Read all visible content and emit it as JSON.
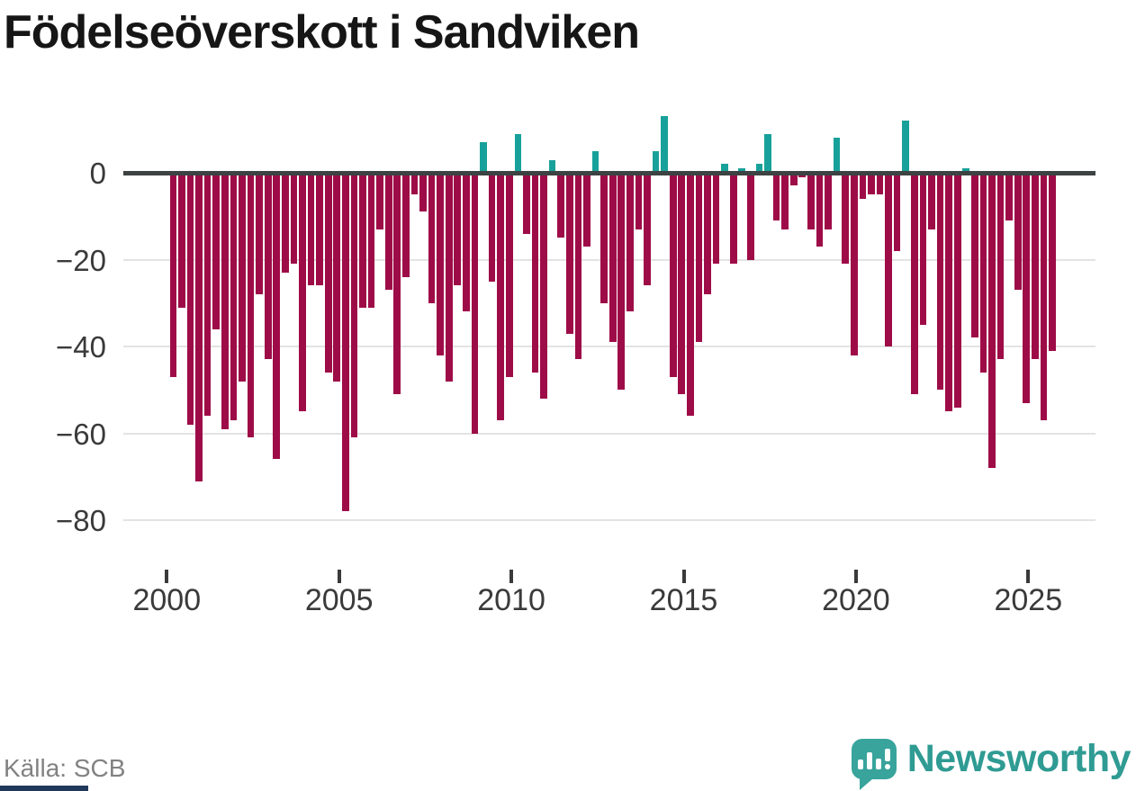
{
  "title": "Födelseöverskott i Sandviken",
  "source_label": "Källa: SCB",
  "logo": {
    "brand": "Newsworthy",
    "icon": "newsworthy-speech-bubble-chart-icon"
  },
  "colors": {
    "positive": "#18a19a",
    "negative": "#9e0c48",
    "axis_line": "#3d4242",
    "gridline": "#e3e3e3",
    "tick_text": "#3a3a3a",
    "title_text": "#161616",
    "source_text": "#828282",
    "logo_teal": "#2f9b93",
    "navy_strip": "#20395a"
  },
  "chart_data": {
    "type": "bar",
    "title": "Födelseöverskott i Sandviken",
    "xlabel": "",
    "ylabel": "",
    "frequency": "quarterly",
    "start_period": "2000 Q1",
    "end_period": "2025 Q3",
    "ylim": [
      -85,
      15
    ],
    "grid": true,
    "legend": false,
    "y_ticks": [
      0,
      -20,
      -40,
      -60,
      -80
    ],
    "y_tick_labels": [
      "0",
      "−20",
      "−40",
      "−60",
      "−80"
    ],
    "x_tick_years": [
      2000,
      2005,
      2010,
      2015,
      2020,
      2025
    ],
    "x_tick_labels": [
      "2000",
      "2005",
      "2010",
      "2015",
      "2020",
      "2025"
    ],
    "series": [
      {
        "name": "Födelseöverskott",
        "values": [
          -47,
          -31,
          -58,
          -71,
          -56,
          -36,
          -59,
          -57,
          -48,
          -61,
          -28,
          -43,
          -66,
          -23,
          -21,
          -55,
          -26,
          -26,
          -46,
          -48,
          -78,
          -61,
          -31,
          -31,
          -13,
          -27,
          -51,
          -24,
          -5,
          -9,
          -30,
          -42,
          -48,
          -26,
          -32,
          -60,
          7,
          -25,
          -57,
          -47,
          9,
          -14,
          -46,
          -52,
          3,
          -15,
          -37,
          -43,
          -17,
          5,
          -30,
          -39,
          -50,
          -32,
          -13,
          -26,
          5,
          13,
          -47,
          -51,
          -56,
          -39,
          -28,
          -21,
          2,
          -21,
          1,
          -20,
          2,
          9,
          -11,
          -13,
          -3,
          -1,
          -13,
          -17,
          -13,
          8,
          -21,
          -42,
          -6,
          -5,
          -5,
          -40,
          -18,
          12,
          -51,
          -35,
          -13,
          -50,
          -55,
          -54,
          1,
          -38,
          -46,
          -68,
          -43,
          -11,
          -27,
          -53,
          -43,
          -57,
          -41
        ]
      }
    ]
  }
}
